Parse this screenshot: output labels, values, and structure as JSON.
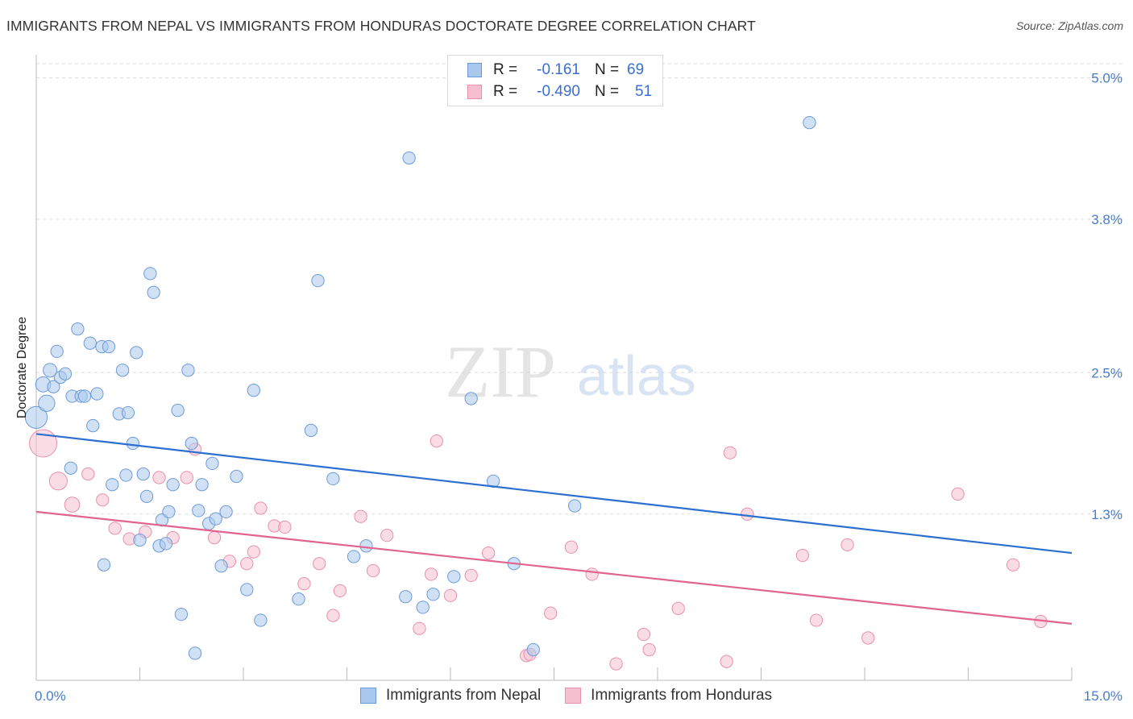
{
  "title": "IMMIGRANTS FROM NEPAL VS IMMIGRANTS FROM HONDURAS DOCTORATE DEGREE CORRELATION CHART",
  "source": "Source: ZipAtlas.com",
  "watermark": {
    "zip": "ZIP",
    "atlas": "atlas"
  },
  "legend": {
    "nepal": {
      "r_label": "R =",
      "r_value": "-0.161",
      "n_label": "N =",
      "n_value": "69"
    },
    "honduras": {
      "r_label": "R =",
      "r_value": "-0.490",
      "n_label": "N =",
      "n_value": "51"
    }
  },
  "bottom_legend": {
    "nepal": "Immigrants from Nepal",
    "honduras": "Immigrants from Honduras"
  },
  "colors": {
    "nepal_fill": "#a9c8ef",
    "nepal_stroke": "#6d9ad6",
    "nepal_line": "#2c6fd1",
    "honduras_fill": "#f6bfd0",
    "honduras_stroke": "#e890ad",
    "honduras_line": "#e0648f",
    "grid": "#dddddd",
    "tick_text": "#4a7cc7"
  },
  "chart_data": {
    "type": "scatter",
    "title": "IMMIGRANTS FROM NEPAL VS IMMIGRANTS FROM HONDURAS DOCTORATE DEGREE CORRELATION CHART",
    "xlabel": "",
    "ylabel": "Doctorate Degree",
    "xlim": [
      0,
      15
    ],
    "ylim": [
      0,
      5.2
    ],
    "x_tick_labels": [
      "0.0%",
      "15.0%"
    ],
    "y_ticks": [
      1.3,
      2.5,
      3.8,
      5.0
    ],
    "y_tick_labels": [
      "1.3%",
      "2.5%",
      "3.8%",
      "5.0%"
    ],
    "series": [
      {
        "name": "Immigrants from Nepal",
        "trend": {
          "x": [
            0,
            15
          ],
          "y": [
            1.98,
            0.97
          ]
        },
        "points": [
          {
            "x": 0.0,
            "y": 2.12,
            "s": 16
          },
          {
            "x": 0.1,
            "y": 2.4,
            "s": 11
          },
          {
            "x": 0.15,
            "y": 2.24,
            "s": 12
          },
          {
            "x": 0.2,
            "y": 2.52,
            "s": 10
          },
          {
            "x": 0.25,
            "y": 2.38,
            "s": 9
          },
          {
            "x": 0.3,
            "y": 2.68,
            "s": 9
          },
          {
            "x": 0.35,
            "y": 2.46,
            "s": 9
          },
          {
            "x": 0.42,
            "y": 2.49,
            "s": 9
          },
          {
            "x": 0.5,
            "y": 1.69,
            "s": 9
          },
          {
            "x": 0.52,
            "y": 2.3,
            "s": 9
          },
          {
            "x": 0.6,
            "y": 2.87,
            "s": 9
          },
          {
            "x": 0.65,
            "y": 2.3,
            "s": 9
          },
          {
            "x": 0.7,
            "y": 2.3,
            "s": 9
          },
          {
            "x": 0.78,
            "y": 2.75,
            "s": 9
          },
          {
            "x": 0.82,
            "y": 2.05,
            "s": 9
          },
          {
            "x": 0.88,
            "y": 2.32,
            "s": 9
          },
          {
            "x": 0.95,
            "y": 2.72,
            "s": 9
          },
          {
            "x": 0.98,
            "y": 0.87,
            "s": 9
          },
          {
            "x": 1.05,
            "y": 2.72,
            "s": 9
          },
          {
            "x": 1.1,
            "y": 1.55,
            "s": 9
          },
          {
            "x": 1.2,
            "y": 2.15,
            "s": 9
          },
          {
            "x": 1.25,
            "y": 2.52,
            "s": 9
          },
          {
            "x": 1.3,
            "y": 1.63,
            "s": 9
          },
          {
            "x": 1.33,
            "y": 2.16,
            "s": 9
          },
          {
            "x": 1.4,
            "y": 1.9,
            "s": 9
          },
          {
            "x": 1.45,
            "y": 2.67,
            "s": 9
          },
          {
            "x": 1.5,
            "y": 1.08,
            "s": 9
          },
          {
            "x": 1.55,
            "y": 1.64,
            "s": 9
          },
          {
            "x": 1.6,
            "y": 1.45,
            "s": 9
          },
          {
            "x": 1.65,
            "y": 3.34,
            "s": 9
          },
          {
            "x": 1.7,
            "y": 3.18,
            "s": 9
          },
          {
            "x": 1.78,
            "y": 1.03,
            "s": 9
          },
          {
            "x": 1.82,
            "y": 1.25,
            "s": 9
          },
          {
            "x": 1.88,
            "y": 1.05,
            "s": 9
          },
          {
            "x": 1.92,
            "y": 1.32,
            "s": 9
          },
          {
            "x": 1.98,
            "y": 1.55,
            "s": 9
          },
          {
            "x": 2.05,
            "y": 2.18,
            "s": 9
          },
          {
            "x": 2.1,
            "y": 0.45,
            "s": 9
          },
          {
            "x": 2.2,
            "y": 2.52,
            "s": 9
          },
          {
            "x": 2.25,
            "y": 1.9,
            "s": 9
          },
          {
            "x": 2.3,
            "y": 0.12,
            "s": 9
          },
          {
            "x": 2.35,
            "y": 1.33,
            "s": 9
          },
          {
            "x": 2.4,
            "y": 1.55,
            "s": 9
          },
          {
            "x": 2.5,
            "y": 1.22,
            "s": 9
          },
          {
            "x": 2.55,
            "y": 1.73,
            "s": 9
          },
          {
            "x": 2.6,
            "y": 1.26,
            "s": 9
          },
          {
            "x": 2.68,
            "y": 0.86,
            "s": 9
          },
          {
            "x": 2.75,
            "y": 1.32,
            "s": 9
          },
          {
            "x": 2.9,
            "y": 1.62,
            "s": 9
          },
          {
            "x": 3.05,
            "y": 0.66,
            "s": 9
          },
          {
            "x": 3.15,
            "y": 2.35,
            "s": 9
          },
          {
            "x": 3.25,
            "y": 0.4,
            "s": 9
          },
          {
            "x": 3.8,
            "y": 0.58,
            "s": 9
          },
          {
            "x": 3.98,
            "y": 2.01,
            "s": 9
          },
          {
            "x": 4.08,
            "y": 3.28,
            "s": 9
          },
          {
            "x": 4.3,
            "y": 1.6,
            "s": 9
          },
          {
            "x": 4.6,
            "y": 0.94,
            "s": 9
          },
          {
            "x": 4.78,
            "y": 1.03,
            "s": 9
          },
          {
            "x": 5.35,
            "y": 0.6,
            "s": 9
          },
          {
            "x": 5.4,
            "y": 4.32,
            "s": 9
          },
          {
            "x": 5.6,
            "y": 0.51,
            "s": 9
          },
          {
            "x": 5.75,
            "y": 0.62,
            "s": 9
          },
          {
            "x": 6.05,
            "y": 0.77,
            "s": 9
          },
          {
            "x": 6.3,
            "y": 2.28,
            "s": 9
          },
          {
            "x": 6.62,
            "y": 1.58,
            "s": 9
          },
          {
            "x": 6.92,
            "y": 0.88,
            "s": 9
          },
          {
            "x": 7.2,
            "y": 0.15,
            "s": 9
          },
          {
            "x": 7.8,
            "y": 1.37,
            "s": 9
          },
          {
            "x": 11.2,
            "y": 4.62,
            "s": 9
          }
        ]
      },
      {
        "name": "Immigrants from Honduras",
        "trend": {
          "x": [
            0,
            15
          ],
          "y": [
            1.32,
            0.37
          ]
        },
        "points": [
          {
            "x": 0.1,
            "y": 1.9,
            "s": 20
          },
          {
            "x": 0.32,
            "y": 1.58,
            "s": 13
          },
          {
            "x": 0.52,
            "y": 1.38,
            "s": 11
          },
          {
            "x": 0.75,
            "y": 1.64,
            "s": 9
          },
          {
            "x": 0.96,
            "y": 1.42,
            "s": 9
          },
          {
            "x": 1.14,
            "y": 1.18,
            "s": 9
          },
          {
            "x": 1.35,
            "y": 1.09,
            "s": 9
          },
          {
            "x": 1.58,
            "y": 1.15,
            "s": 9
          },
          {
            "x": 1.78,
            "y": 1.61,
            "s": 9
          },
          {
            "x": 1.98,
            "y": 1.1,
            "s": 9
          },
          {
            "x": 2.18,
            "y": 1.61,
            "s": 9
          },
          {
            "x": 2.3,
            "y": 1.85,
            "s": 9
          },
          {
            "x": 2.58,
            "y": 1.1,
            "s": 9
          },
          {
            "x": 2.8,
            "y": 0.9,
            "s": 9
          },
          {
            "x": 3.05,
            "y": 0.88,
            "s": 9
          },
          {
            "x": 3.25,
            "y": 1.35,
            "s": 9
          },
          {
            "x": 3.45,
            "y": 1.2,
            "s": 9
          },
          {
            "x": 3.6,
            "y": 1.19,
            "s": 9
          },
          {
            "x": 3.88,
            "y": 0.71,
            "s": 9
          },
          {
            "x": 4.1,
            "y": 0.88,
            "s": 9
          },
          {
            "x": 4.3,
            "y": 0.44,
            "s": 9
          },
          {
            "x": 4.4,
            "y": 0.65,
            "s": 9
          },
          {
            "x": 4.7,
            "y": 1.28,
            "s": 9
          },
          {
            "x": 4.88,
            "y": 0.82,
            "s": 9
          },
          {
            "x": 5.08,
            "y": 1.12,
            "s": 9
          },
          {
            "x": 5.55,
            "y": 0.33,
            "s": 9
          },
          {
            "x": 5.8,
            "y": 1.92,
            "s": 9
          },
          {
            "x": 5.72,
            "y": 0.79,
            "s": 9
          },
          {
            "x": 6.0,
            "y": 0.61,
            "s": 9
          },
          {
            "x": 6.3,
            "y": 0.78,
            "s": 9
          },
          {
            "x": 6.55,
            "y": 0.97,
            "s": 9
          },
          {
            "x": 7.1,
            "y": 0.1,
            "s": 9
          },
          {
            "x": 7.15,
            "y": 0.11,
            "s": 9
          },
          {
            "x": 7.45,
            "y": 0.46,
            "s": 9
          },
          {
            "x": 7.75,
            "y": 1.02,
            "s": 9
          },
          {
            "x": 8.05,
            "y": 0.79,
            "s": 9
          },
          {
            "x": 8.4,
            "y": 0.03,
            "s": 9
          },
          {
            "x": 8.8,
            "y": 0.28,
            "s": 9
          },
          {
            "x": 8.88,
            "y": 0.15,
            "s": 9
          },
          {
            "x": 9.3,
            "y": 0.5,
            "s": 9
          },
          {
            "x": 10.0,
            "y": 0.05,
            "s": 9
          },
          {
            "x": 10.05,
            "y": 1.82,
            "s": 9
          },
          {
            "x": 10.3,
            "y": 1.3,
            "s": 9
          },
          {
            "x": 11.1,
            "y": 0.95,
            "s": 9
          },
          {
            "x": 11.3,
            "y": 0.4,
            "s": 9
          },
          {
            "x": 11.75,
            "y": 1.04,
            "s": 9
          },
          {
            "x": 12.05,
            "y": 0.25,
            "s": 9
          },
          {
            "x": 13.35,
            "y": 1.47,
            "s": 9
          },
          {
            "x": 14.15,
            "y": 0.87,
            "s": 9
          },
          {
            "x": 14.55,
            "y": 0.39,
            "s": 9
          },
          {
            "x": 3.15,
            "y": 0.98,
            "s": 9
          }
        ]
      }
    ]
  }
}
